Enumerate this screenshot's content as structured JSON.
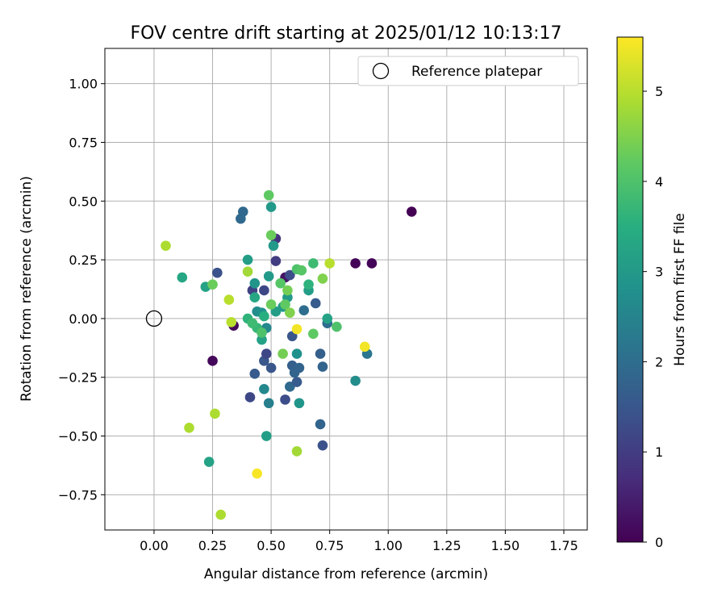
{
  "chart_data": {
    "type": "scatter",
    "title": "FOV centre drift starting at 2025/01/12 10:13:17",
    "xlabel": "Angular distance from reference (arcmin)",
    "ylabel": "Rotation from reference (arcmin)",
    "xlim": [
      -0.21,
      1.85
    ],
    "ylim": [
      -0.9,
      1.15
    ],
    "xticks": [
      "0.00",
      "0.25",
      "0.50",
      "0.75",
      "1.00",
      "1.25",
      "1.50",
      "1.75"
    ],
    "xtick_values": [
      0,
      0.25,
      0.5,
      0.75,
      1.0,
      1.25,
      1.5,
      1.75
    ],
    "yticks": [
      "−0.75",
      "−0.50",
      "−0.25",
      "0.00",
      "0.25",
      "0.50",
      "0.75",
      "1.00"
    ],
    "ytick_values": [
      -0.75,
      -0.5,
      -0.25,
      0,
      0.25,
      0.5,
      0.75,
      1.0
    ],
    "grid": true,
    "colormap": "viridis",
    "colorbar": {
      "label": "Hours from first FF file",
      "min": 0,
      "max": 5.6,
      "ticks": [
        "0",
        "1",
        "2",
        "3",
        "4",
        "5"
      ],
      "tick_values": [
        0,
        1,
        2,
        3,
        4,
        5
      ]
    },
    "reference": {
      "name": "Reference platepar",
      "x": 0.0,
      "y": 0.0
    },
    "legend": {
      "label": "Reference platepar",
      "loc": "upper right"
    },
    "points": [
      {
        "x": 1.1,
        "y": 0.455,
        "c": 0.0
      },
      {
        "x": 0.86,
        "y": 0.235,
        "c": 0.05
      },
      {
        "x": 0.93,
        "y": 0.235,
        "c": 0.05
      },
      {
        "x": 0.25,
        "y": -0.18,
        "c": 0.1
      },
      {
        "x": 0.34,
        "y": -0.03,
        "c": 0.15
      },
      {
        "x": 0.56,
        "y": 0.175,
        "c": 0.3
      },
      {
        "x": 0.52,
        "y": 0.34,
        "c": 0.8
      },
      {
        "x": 0.52,
        "y": 0.245,
        "c": 1.0
      },
      {
        "x": 0.27,
        "y": 0.195,
        "c": 1.4
      },
      {
        "x": 0.42,
        "y": 0.12,
        "c": 1.1
      },
      {
        "x": 0.47,
        "y": 0.12,
        "c": 1.2
      },
      {
        "x": 0.58,
        "y": 0.185,
        "c": 1.3
      },
      {
        "x": 0.41,
        "y": -0.335,
        "c": 1.2
      },
      {
        "x": 0.43,
        "y": -0.235,
        "c": 1.6
      },
      {
        "x": 0.47,
        "y": -0.18,
        "c": 1.5
      },
      {
        "x": 0.48,
        "y": -0.15,
        "c": 1.2
      },
      {
        "x": 0.5,
        "y": -0.21,
        "c": 1.5
      },
      {
        "x": 0.56,
        "y": -0.345,
        "c": 1.3
      },
      {
        "x": 0.58,
        "y": -0.29,
        "c": 1.9
      },
      {
        "x": 0.59,
        "y": -0.2,
        "c": 1.7
      },
      {
        "x": 0.6,
        "y": -0.23,
        "c": 1.8
      },
      {
        "x": 0.61,
        "y": -0.27,
        "c": 1.6
      },
      {
        "x": 0.62,
        "y": -0.21,
        "c": 1.8
      },
      {
        "x": 0.59,
        "y": -0.075,
        "c": 1.5
      },
      {
        "x": 0.71,
        "y": -0.45,
        "c": 1.8
      },
      {
        "x": 0.72,
        "y": -0.54,
        "c": 1.4
      },
      {
        "x": 0.71,
        "y": -0.15,
        "c": 1.7
      },
      {
        "x": 0.72,
        "y": -0.205,
        "c": 1.8
      },
      {
        "x": 0.69,
        "y": 0.065,
        "c": 1.6
      },
      {
        "x": 0.64,
        "y": 0.035,
        "c": 2.0
      },
      {
        "x": 0.74,
        "y": -0.02,
        "c": 2.0
      },
      {
        "x": 0.38,
        "y": 0.455,
        "c": 1.9
      },
      {
        "x": 0.37,
        "y": 0.425,
        "c": 1.9
      },
      {
        "x": 0.91,
        "y": -0.15,
        "c": 2.2
      },
      {
        "x": 0.86,
        "y": -0.265,
        "c": 2.7
      },
      {
        "x": 0.49,
        "y": -0.36,
        "c": 2.4
      },
      {
        "x": 0.47,
        "y": -0.3,
        "c": 2.6
      },
      {
        "x": 0.48,
        "y": -0.5,
        "c": 3.1
      },
      {
        "x": 0.62,
        "y": -0.36,
        "c": 2.9
      },
      {
        "x": 0.61,
        "y": -0.15,
        "c": 2.8
      },
      {
        "x": 0.235,
        "y": -0.61,
        "c": 3.2
      },
      {
        "x": 0.12,
        "y": 0.175,
        "c": 3.3
      },
      {
        "x": 0.22,
        "y": 0.135,
        "c": 3.2
      },
      {
        "x": 0.4,
        "y": 0.25,
        "c": 3.1
      },
      {
        "x": 0.43,
        "y": 0.15,
        "c": 2.9
      },
      {
        "x": 0.5,
        "y": 0.475,
        "c": 3.0
      },
      {
        "x": 0.51,
        "y": 0.31,
        "c": 3.0
      },
      {
        "x": 0.49,
        "y": 0.18,
        "c": 3.0
      },
      {
        "x": 0.44,
        "y": 0.03,
        "c": 2.7
      },
      {
        "x": 0.46,
        "y": 0.025,
        "c": 2.8
      },
      {
        "x": 0.48,
        "y": -0.04,
        "c": 2.6
      },
      {
        "x": 0.52,
        "y": 0.03,
        "c": 3.1
      },
      {
        "x": 0.55,
        "y": 0.05,
        "c": 3.0
      },
      {
        "x": 0.57,
        "y": 0.09,
        "c": 3.0
      },
      {
        "x": 0.66,
        "y": 0.12,
        "c": 3.1
      },
      {
        "x": 0.74,
        "y": 0.0,
        "c": 3.2
      },
      {
        "x": 0.46,
        "y": -0.09,
        "c": 3.2
      },
      {
        "x": 0.43,
        "y": 0.09,
        "c": 3.3
      },
      {
        "x": 0.4,
        "y": 0.0,
        "c": 3.6
      },
      {
        "x": 0.44,
        "y": -0.04,
        "c": 3.7
      },
      {
        "x": 0.47,
        "y": 0.01,
        "c": 3.5
      },
      {
        "x": 0.42,
        "y": -0.02,
        "c": 3.8
      },
      {
        "x": 0.46,
        "y": -0.06,
        "c": 4.0
      },
      {
        "x": 0.5,
        "y": 0.06,
        "c": 4.3
      },
      {
        "x": 0.54,
        "y": 0.15,
        "c": 4.1
      },
      {
        "x": 0.56,
        "y": 0.06,
        "c": 4.2
      },
      {
        "x": 0.57,
        "y": 0.12,
        "c": 4.4
      },
      {
        "x": 0.58,
        "y": 0.025,
        "c": 4.5
      },
      {
        "x": 0.55,
        "y": -0.15,
        "c": 4.4
      },
      {
        "x": 0.61,
        "y": 0.21,
        "c": 4.0
      },
      {
        "x": 0.63,
        "y": 0.205,
        "c": 4.1
      },
      {
        "x": 0.66,
        "y": 0.145,
        "c": 3.6
      },
      {
        "x": 0.68,
        "y": 0.235,
        "c": 3.8
      },
      {
        "x": 0.72,
        "y": 0.17,
        "c": 4.5
      },
      {
        "x": 0.68,
        "y": -0.065,
        "c": 4.2
      },
      {
        "x": 0.78,
        "y": -0.035,
        "c": 4.0
      },
      {
        "x": 0.5,
        "y": 0.355,
        "c": 4.3
      },
      {
        "x": 0.49,
        "y": 0.525,
        "c": 4.2
      },
      {
        "x": 0.4,
        "y": 0.2,
        "c": 4.8
      },
      {
        "x": 0.25,
        "y": 0.145,
        "c": 4.3
      },
      {
        "x": 0.05,
        "y": 0.31,
        "c": 4.9
      },
      {
        "x": 0.32,
        "y": 0.08,
        "c": 5.0
      },
      {
        "x": 0.33,
        "y": -0.015,
        "c": 5.0
      },
      {
        "x": 0.75,
        "y": 0.235,
        "c": 5.0
      },
      {
        "x": 0.15,
        "y": -0.465,
        "c": 4.9
      },
      {
        "x": 0.26,
        "y": -0.405,
        "c": 4.9
      },
      {
        "x": 0.285,
        "y": -0.835,
        "c": 4.9
      },
      {
        "x": 0.61,
        "y": -0.565,
        "c": 4.8
      },
      {
        "x": 0.61,
        "y": -0.045,
        "c": 5.5
      },
      {
        "x": 0.9,
        "y": -0.12,
        "c": 5.5
      },
      {
        "x": 0.44,
        "y": -0.66,
        "c": 5.55
      }
    ]
  }
}
